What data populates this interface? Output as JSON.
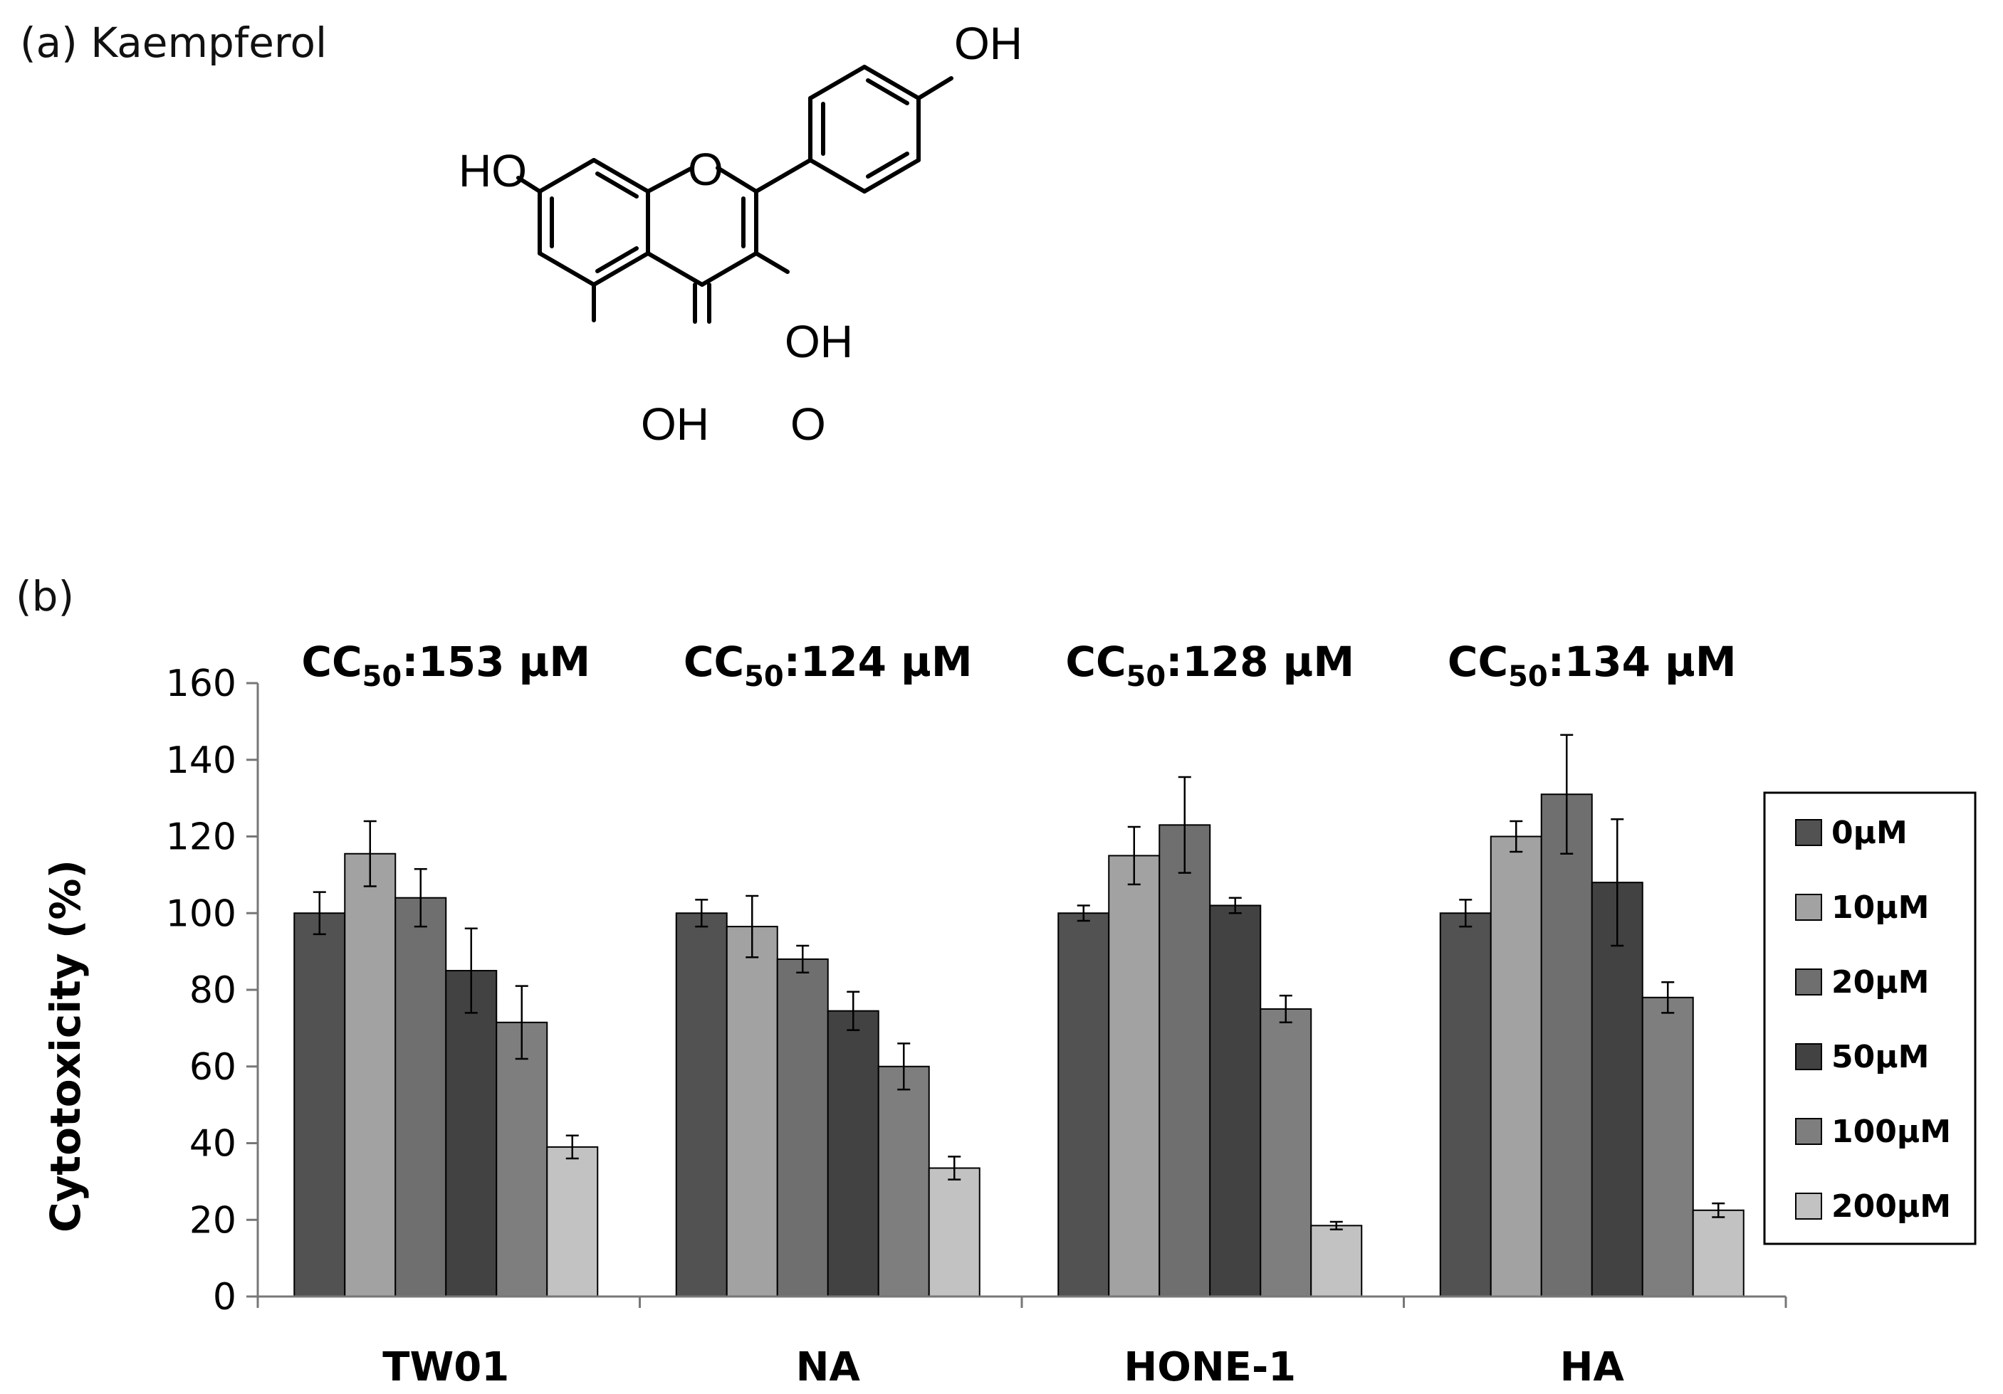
{
  "panel_a": {
    "label": "(a) Kaempferol",
    "atoms": {
      "oh_top": "OH",
      "oh_left": "HO",
      "ring_o": "O",
      "oh_right": "OH",
      "oh_bottom": "OH",
      "carbonyl_o": "O"
    }
  },
  "panel_b": {
    "label": "(b)"
  },
  "chart_data": {
    "type": "bar",
    "ylabel": "Cytotoxicity (%)",
    "xlabel": "",
    "ylim": [
      0,
      160
    ],
    "yticks": [
      "0",
      "20",
      "40",
      "60",
      "80",
      "100",
      "120",
      "140",
      "160"
    ],
    "categories": [
      "TW01",
      "NA",
      "HONE-1",
      "HA"
    ],
    "annotations": [
      {
        "prefix": "CC",
        "sub": "50",
        "suffix": ":153 µM"
      },
      {
        "prefix": "CC",
        "sub": "50",
        "suffix": ":124 µM"
      },
      {
        "prefix": "CC",
        "sub": "50",
        "suffix": ":128 µM"
      },
      {
        "prefix": "CC",
        "sub": "50",
        "suffix": ":134 µM"
      }
    ],
    "legend_position": "right",
    "series": [
      {
        "name": "0µM",
        "color": "#525252",
        "values": [
          100,
          100,
          100,
          100
        ],
        "errors": [
          5.5,
          3.5,
          2,
          3.5
        ]
      },
      {
        "name": "10µM",
        "color": "#a2a2a2",
        "values": [
          115.5,
          96.5,
          115,
          120
        ],
        "errors": [
          8.5,
          8,
          7.5,
          4
        ]
      },
      {
        "name": "20µM",
        "color": "#6f6f6f",
        "values": [
          104,
          88,
          123,
          131
        ],
        "errors": [
          7.5,
          3.5,
          12.5,
          15.5
        ]
      },
      {
        "name": "50µM",
        "color": "#424242",
        "values": [
          85,
          74.5,
          102,
          108
        ],
        "errors": [
          11,
          5,
          2,
          16.5
        ]
      },
      {
        "name": "100µM",
        "color": "#7e7e7e",
        "values": [
          71.5,
          60,
          75,
          78
        ],
        "errors": [
          9.5,
          6,
          3.5,
          4
        ]
      },
      {
        "name": "200µM",
        "color": "#c2c2c2",
        "values": [
          39,
          33.5,
          18.5,
          22.5
        ],
        "errors": [
          3,
          3,
          1,
          1.8
        ]
      }
    ]
  }
}
